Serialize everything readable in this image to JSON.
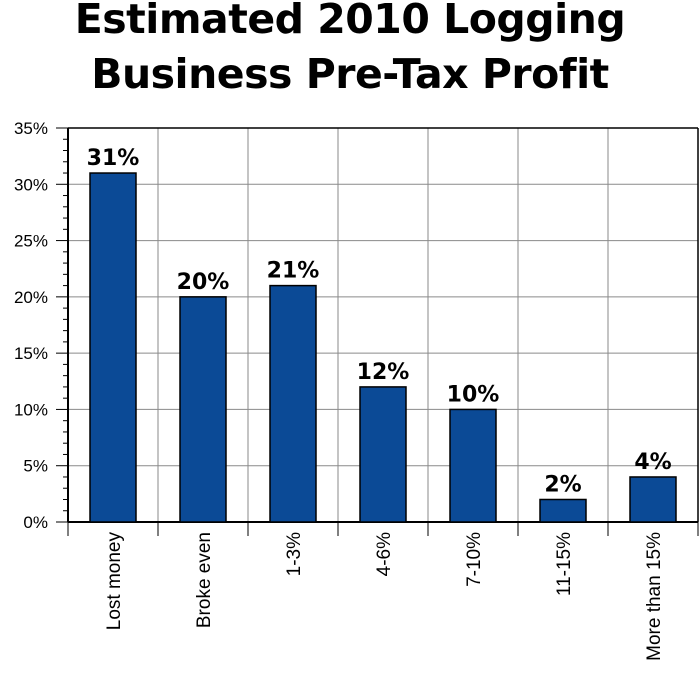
{
  "chart_data": {
    "type": "bar",
    "title_line1": "Estimated 2010 Logging",
    "title_line2": "Business Pre-Tax Profit",
    "categories": [
      "Lost money",
      "Broke even",
      "1-3%",
      "4-6%",
      "7-10%",
      "11-15%",
      "More than 15%"
    ],
    "values": [
      31,
      20,
      21,
      12,
      10,
      2,
      4
    ],
    "data_labels": [
      "31%",
      "20%",
      "21%",
      "12%",
      "10%",
      "2%",
      "4%"
    ],
    "y_ticks": [
      "0%",
      "5%",
      "10%",
      "15%",
      "20%",
      "25%",
      "30%",
      "35%"
    ],
    "ylim": [
      0,
      35
    ],
    "grid": true,
    "bar_color": "#0b4a96"
  }
}
